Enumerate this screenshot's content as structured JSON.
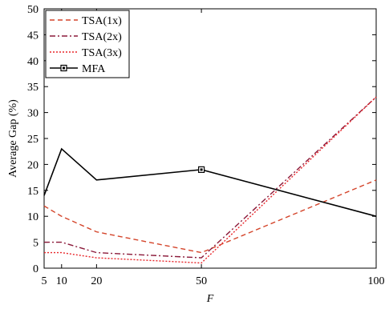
{
  "chart_data": {
    "type": "line",
    "xlabel": "F",
    "ylabel": "Average Gap (%)",
    "xlim": [
      5,
      100
    ],
    "ylim": [
      0,
      50
    ],
    "xticks": [
      5,
      10,
      20,
      50,
      100
    ],
    "yticks": [
      0,
      5,
      10,
      15,
      20,
      25,
      30,
      35,
      40,
      45,
      50
    ],
    "legend_position": "top-left",
    "grid": false,
    "series": [
      {
        "name": "TSA(1x)",
        "color": "#d4442a",
        "dash": "dashed",
        "marker": "none",
        "x": [
          5,
          10,
          20,
          50,
          100
        ],
        "y": [
          12,
          10,
          7,
          3,
          17
        ]
      },
      {
        "name": "TSA(2x)",
        "color": "#8b1a3a",
        "dash": "dashdot",
        "marker": "none",
        "x": [
          5,
          10,
          20,
          50,
          100
        ],
        "y": [
          5,
          5,
          3,
          2,
          33
        ]
      },
      {
        "name": "TSA(3x)",
        "color": "#e8262a",
        "dash": "dotted",
        "marker": "none",
        "x": [
          5,
          10,
          20,
          50,
          100
        ],
        "y": [
          3,
          3,
          2,
          1,
          33
        ]
      },
      {
        "name": "MFA",
        "color": "#000000",
        "dash": "solid",
        "marker": "square",
        "x": [
          5,
          10,
          20,
          50,
          100
        ],
        "y": [
          14,
          23,
          17,
          19,
          10
        ]
      }
    ]
  }
}
